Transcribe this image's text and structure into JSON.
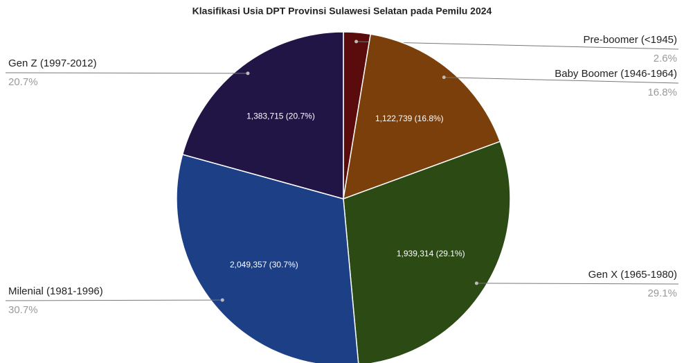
{
  "chart_data": {
    "type": "pie",
    "title": "Klasifikasi Usia DPT Provinsi Sulawesi Selatan pada Pemilu 2024",
    "categories": [
      "Pre-boomer (<1945)",
      "Baby Boomer (1946-1964)",
      "Gen X (1965-1980)",
      "Milenial (1981-1996)",
      "Gen Z (1997-2012)"
    ],
    "values": [
      2.6,
      16.8,
      29.1,
      30.7,
      20.7
    ],
    "value_labels": [
      "2.6%",
      "16.8%",
      "29.1%",
      "30.7%",
      "20.7%"
    ],
    "inner_labels": [
      null,
      "1,122,739 (16.8%)",
      "1,939,314 (29.1%)",
      "2,049,357 (30.7%)",
      "1,383,715 (20.7%)"
    ],
    "colors": [
      "#5a0b0b",
      "#7a3f0b",
      "#2b4a14",
      "#1c3f86",
      "#211546"
    ]
  }
}
